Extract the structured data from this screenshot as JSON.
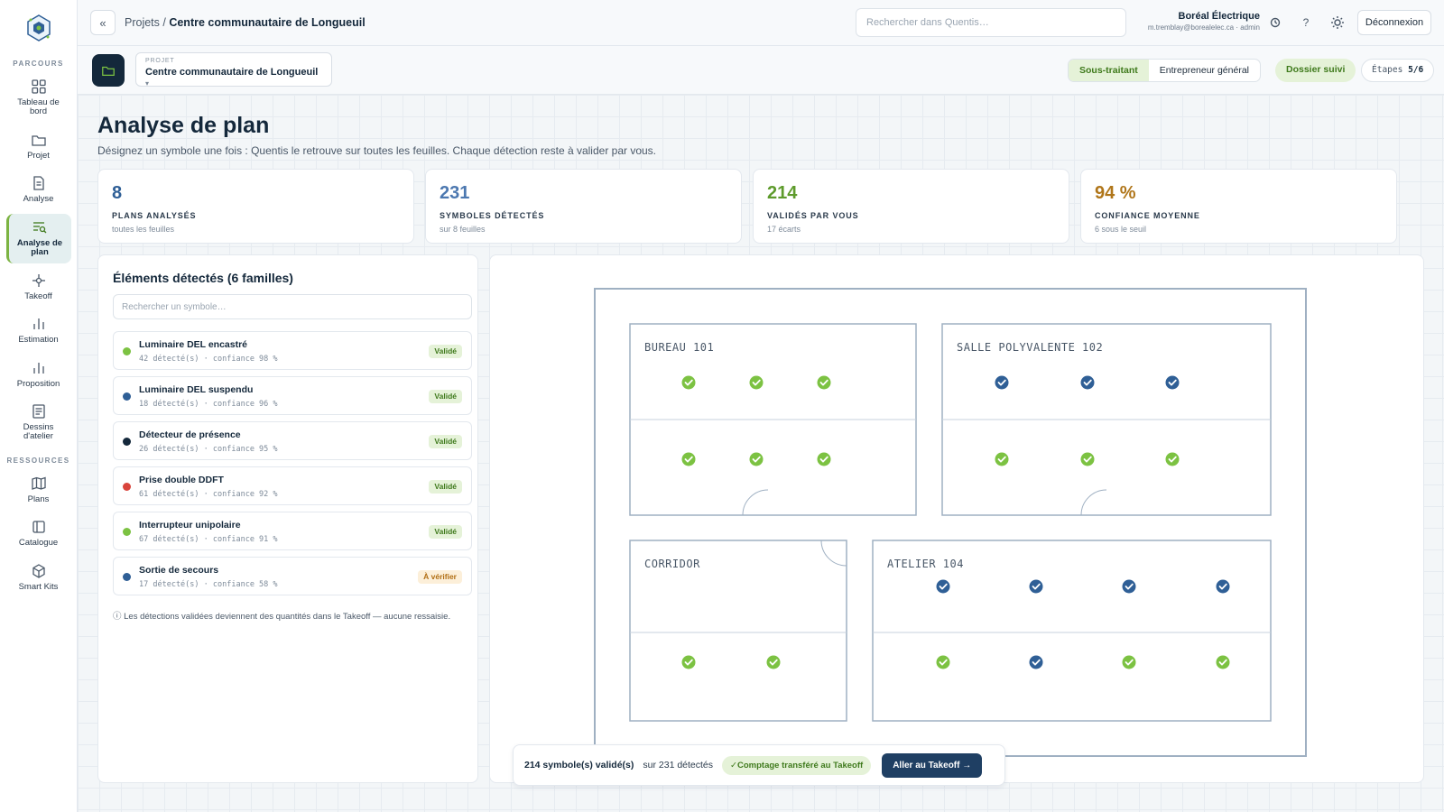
{
  "app": {
    "brand": "Quentis"
  },
  "sidebar": {
    "section_parcours": "PARCOURS",
    "section_ressources": "RESSOURCES",
    "items": [
      {
        "label": "Tableau de bord",
        "icon": "grid-icon"
      },
      {
        "label": "Projet",
        "icon": "folder-icon"
      },
      {
        "label": "Analyse",
        "icon": "document-icon"
      },
      {
        "label": "Analyse de plan",
        "icon": "plan-search-icon",
        "active": true
      },
      {
        "label": "Takeoff",
        "icon": "crosshair-icon"
      },
      {
        "label": "Estimation",
        "icon": "bar-chart-icon"
      },
      {
        "label": "Proposition",
        "icon": "bar-chart-icon"
      },
      {
        "label": "Dessins d'atelier",
        "icon": "drawing-icon"
      }
    ],
    "resources": [
      {
        "label": "Plans",
        "icon": "map-icon"
      },
      {
        "label": "Catalogue",
        "icon": "catalog-icon"
      },
      {
        "label": "Smart Kits",
        "icon": "cube-icon"
      }
    ]
  },
  "topbar": {
    "back_label": "«",
    "breadcrumb_root": "Projets",
    "breadcrumb_sep": " / ",
    "breadcrumb_current": "Centre communautaire de Longueuil",
    "search_placeholder": "Rechercher dans Quentis…",
    "company": "Boréal Électrique",
    "user_email": "m.tremblay@borealelec.ca · admin",
    "help_label": "?",
    "logout_label": "Déconnexion"
  },
  "projbar": {
    "project_caption": "PROJET",
    "project_name": "Centre communautaire de Longueuil",
    "role_sub": "Sous-traitant",
    "role_general": "Entrepreneur général",
    "dossier": "Dossier suivi",
    "steps_label": "Étapes",
    "steps_value": "5/6"
  },
  "page": {
    "title": "Analyse de plan",
    "subtitle": "Désignez un symbole une fois : Quentis le retrouve sur toutes les feuilles. Chaque détection reste à valider par vous."
  },
  "kpis": [
    {
      "value": "8",
      "label": "PLANS ANALYSÉS",
      "sub": "toutes les feuilles",
      "color": "#2f5f96"
    },
    {
      "value": "231",
      "label": "SYMBOLES DÉTECTÉS",
      "sub": "sur 8 feuilles",
      "color": "#4c78b0"
    },
    {
      "value": "214",
      "label": "VALIDÉS PAR VOUS",
      "sub": "17 écarts",
      "color": "#5e9b2c"
    },
    {
      "value": "94 %",
      "label": "CONFIANCE MOYENNE",
      "sub": "6 sous le seuil",
      "color": "#b0761a"
    }
  ],
  "list": {
    "title": "Éléments détectés (6 familles)",
    "search_placeholder": "Rechercher un symbole…",
    "items": [
      {
        "name": "Luminaire DEL encastré",
        "meta": "42 détecté(s) · confiance 98 %",
        "badge": "Validé",
        "status": "ok",
        "color": "#7cc242"
      },
      {
        "name": "Luminaire DEL suspendu",
        "meta": "18 détecté(s) · confiance 96 %",
        "badge": "Validé",
        "status": "ok",
        "color": "#2f5f96"
      },
      {
        "name": "Détecteur de présence",
        "meta": "26 détecté(s) · confiance 95 %",
        "badge": "Validé",
        "status": "ok",
        "color": "#14283b"
      },
      {
        "name": "Prise double DDFT",
        "meta": "61 détecté(s) · confiance 92 %",
        "badge": "Validé",
        "status": "ok",
        "color": "#d9443c"
      },
      {
        "name": "Interrupteur unipolaire",
        "meta": "67 détecté(s) · confiance 91 %",
        "badge": "Validé",
        "status": "ok",
        "color": "#7cc242"
      },
      {
        "name": "Sortie de secours",
        "meta": "17 détecté(s) · confiance 58 %",
        "badge": "À vérifier",
        "status": "warn",
        "color": "#2f5f96"
      }
    ],
    "note": "ⓘ Les détections validées deviennent des quantités dans le Takeoff — aucune ressaisie."
  },
  "plan": {
    "rooms": [
      "BUREAU 101",
      "SALLE POLYVALENTE 102",
      "CORRIDOR",
      "ATELIER 104"
    ],
    "colors": {
      "green": "#7cc242",
      "blue": "#2f5f96"
    }
  },
  "summary": {
    "validated": "214 symbole(s) validé(s)",
    "detected": "sur 231 détectés",
    "transfer": "✓Comptage transféré au Takeoff",
    "cta": "Aller au Takeoff →"
  }
}
